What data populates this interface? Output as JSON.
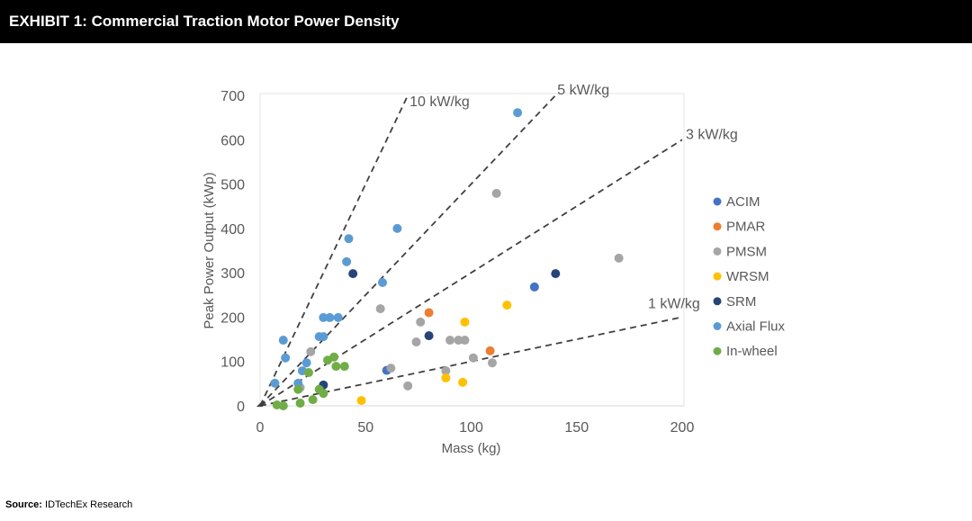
{
  "header": {
    "title": "EXHIBIT 1: Commercial Traction Motor Power Density"
  },
  "source": {
    "label": "Source:",
    "text": "IDTechEx Research"
  },
  "chart_data": {
    "type": "scatter",
    "title": "",
    "xlabel": "Mass (kg)",
    "ylabel": "Peak Power Output (kWp)",
    "xlim": [
      0,
      200
    ],
    "ylim": [
      0,
      700
    ],
    "xticks": [
      0,
      50,
      100,
      150,
      200
    ],
    "yticks": [
      0,
      100,
      200,
      300,
      400,
      500,
      600,
      700
    ],
    "grid": false,
    "legend_position": "right",
    "reference_lines": [
      {
        "label": "10 kW/kg",
        "slope": 10
      },
      {
        "label": "5 kW/kg",
        "slope": 5
      },
      {
        "label": "3 kW/kg",
        "slope": 3
      },
      {
        "label": "1 kW/kg",
        "slope": 1
      }
    ],
    "series": [
      {
        "name": "ACIM",
        "color": "#4472C4",
        "points": [
          [
            60,
            80
          ],
          [
            130,
            268
          ]
        ]
      },
      {
        "name": "PMAR",
        "color": "#ED7D31",
        "points": [
          [
            80,
            210
          ],
          [
            109,
            124
          ]
        ]
      },
      {
        "name": "PMSM",
        "color": "#A5A5A5",
        "points": [
          [
            112,
            479
          ],
          [
            170,
            333
          ],
          [
            57,
            219
          ],
          [
            76,
            189
          ],
          [
            74,
            144
          ],
          [
            90,
            148
          ],
          [
            94,
            148
          ],
          [
            97,
            148
          ],
          [
            101,
            108
          ],
          [
            110,
            97
          ],
          [
            88,
            79
          ],
          [
            62,
            85
          ],
          [
            70,
            45
          ],
          [
            24,
            122
          ],
          [
            19,
            41
          ]
        ]
      },
      {
        "name": "WRSM",
        "color": "#FFC000",
        "points": [
          [
            48,
            12
          ],
          [
            88,
            63
          ],
          [
            96,
            53
          ],
          [
            97,
            189
          ],
          [
            117,
            227
          ]
        ]
      },
      {
        "name": "SRM",
        "color": "#264478",
        "points": [
          [
            44,
            298
          ],
          [
            140,
            298
          ],
          [
            80,
            158
          ],
          [
            30,
            47
          ]
        ]
      },
      {
        "name": "Axial Flux",
        "color": "#5B9BD5",
        "points": [
          [
            122,
            661
          ],
          [
            65,
            400
          ],
          [
            42,
            377
          ],
          [
            41,
            325
          ],
          [
            58,
            278
          ],
          [
            30,
            199
          ],
          [
            33,
            199
          ],
          [
            37,
            199
          ],
          [
            28,
            156
          ],
          [
            30,
            156
          ],
          [
            11,
            148
          ],
          [
            12,
            108
          ],
          [
            22,
            97
          ],
          [
            20,
            79
          ],
          [
            18,
            51
          ],
          [
            7,
            51
          ]
        ]
      },
      {
        "name": "In-wheel",
        "color": "#70AD47",
        "points": [
          [
            32,
            103
          ],
          [
            35,
            110
          ],
          [
            36,
            89
          ],
          [
            40,
            89
          ],
          [
            23,
            75
          ],
          [
            18,
            37
          ],
          [
            28,
            37
          ],
          [
            30,
            28
          ],
          [
            25,
            14
          ],
          [
            19,
            6
          ],
          [
            11,
            0
          ],
          [
            8,
            2
          ]
        ]
      }
    ]
  }
}
